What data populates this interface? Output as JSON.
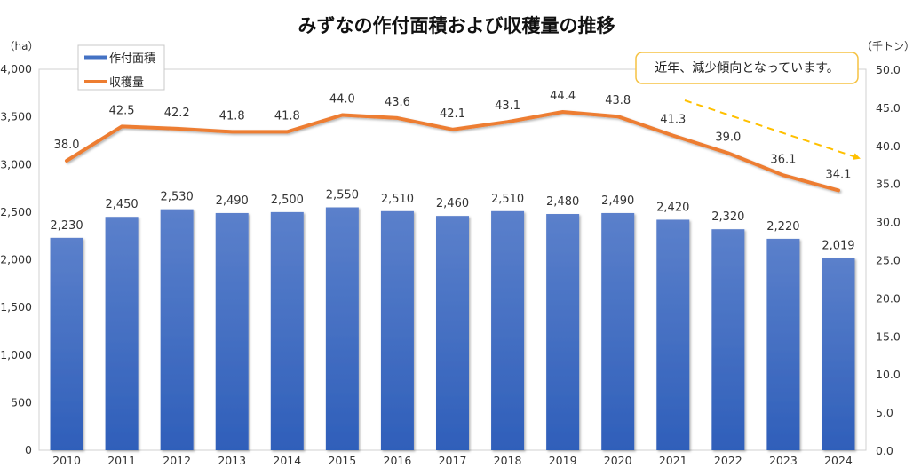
{
  "chart_data": {
    "type": "bar+line",
    "title": "みずなの作付面積および収穫量の推移",
    "categories": [
      "2010",
      "2011",
      "2012",
      "2013",
      "2014",
      "2015",
      "2016",
      "2017",
      "2018",
      "2019",
      "2020",
      "2021",
      "2022",
      "2023",
      "2024"
    ],
    "series": [
      {
        "name": "作付面積",
        "type": "bar",
        "axis": "left",
        "color": "#4472C4",
        "values": [
          2230,
          2450,
          2530,
          2490,
          2500,
          2550,
          2510,
          2460,
          2510,
          2480,
          2490,
          2420,
          2320,
          2220,
          2019
        ],
        "labels": [
          "2,230",
          "2,450",
          "2,530",
          "2,490",
          "2,500",
          "2,550",
          "2,510",
          "2,460",
          "2,510",
          "2,480",
          "2,490",
          "2,420",
          "2,320",
          "2,220",
          "2,019"
        ]
      },
      {
        "name": "収穫量",
        "type": "line",
        "axis": "right",
        "color": "#ED7D31",
        "values": [
          38.0,
          42.5,
          42.2,
          41.8,
          41.8,
          44.0,
          43.6,
          42.1,
          43.1,
          44.4,
          43.8,
          41.3,
          39.0,
          36.1,
          34.1
        ],
        "labels": [
          "38.0",
          "42.5",
          "42.2",
          "41.8",
          "41.8",
          "44.0",
          "43.6",
          "42.1",
          "43.1",
          "44.4",
          "43.8",
          "41.3",
          "39.0",
          "36.1",
          "34.1"
        ]
      }
    ],
    "left_axis": {
      "unit": "（ha）",
      "ylim": [
        0,
        4000
      ],
      "ticks": [
        0,
        500,
        1000,
        1500,
        2000,
        2500,
        3000,
        3500,
        4000
      ],
      "tick_labels": [
        "0",
        "500",
        "1,000",
        "1,500",
        "2,000",
        "2,500",
        "3,000",
        "3,500",
        "4,000"
      ]
    },
    "right_axis": {
      "unit": "（千トン）",
      "ylim": [
        0,
        50
      ],
      "ticks": [
        0,
        5,
        10,
        15,
        20,
        25,
        30,
        35,
        40,
        45,
        50
      ],
      "tick_labels": [
        "0.0",
        "5.0",
        "10.0",
        "15.0",
        "20.0",
        "25.0",
        "30.0",
        "35.0",
        "40.0",
        "45.0",
        "50.0"
      ]
    },
    "grid": false,
    "legend": {
      "placement": "top-left",
      "entries": [
        "作付面積",
        "収穫量"
      ]
    },
    "annotation": {
      "text": "近年、減少傾向となっています。",
      "border_color": "#F5C242",
      "arrow_color": "#FFC000",
      "arrow_style": "dashed",
      "arrow_direction": "down-right"
    }
  }
}
